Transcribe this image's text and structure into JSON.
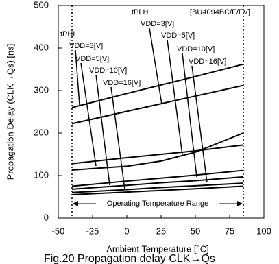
{
  "chart_data": {
    "type": "line",
    "xlabel": "Ambient Temperature [°C]",
    "ylabel": "Propagation Delay (CLK→Qs) [ns]",
    "caption": "Fig.20 Propagation delay CLK→Qs",
    "x": [
      -40,
      0,
      25,
      50,
      85
    ],
    "series": [
      {
        "color": "#000000",
        "values": [
          260,
          293,
          313,
          333,
          362
        ]
      },
      {
        "color": "#000000",
        "values": [
          222,
          251,
          269,
          287,
          312
        ]
      },
      {
        "color": "#000000",
        "values": [
          128,
          142,
          150,
          158,
          172
        ]
      },
      {
        "color": "#000000",
        "values": [
          113,
          122,
          134,
          155,
          200
        ]
      },
      {
        "color": "#000000",
        "values": [
          75,
          87,
          94,
          101,
          112
        ]
      },
      {
        "color": "#000000",
        "values": [
          68,
          77,
          83,
          88,
          97
        ]
      },
      {
        "color": "#000000",
        "values": [
          60,
          67,
          72,
          76,
          82
        ]
      },
      {
        "color": "#000000",
        "values": [
          55,
          61,
          65,
          69,
          75
        ]
      }
    ],
    "xlim": [
      -50,
      100
    ],
    "xticks": [
      -50,
      -25,
      0,
      25,
      50,
      75,
      100
    ],
    "ylim": [
      0,
      500
    ],
    "yticks": [
      0,
      100,
      200,
      300,
      400,
      500
    ],
    "operating_range": [
      -40,
      85
    ],
    "range_label": "Operating Temperature Range",
    "annotations": [
      "tPHL",
      "VDD=3[V]",
      "VDD=5[V]",
      "VDD=10[V]",
      "VDD=16[V]",
      "tPLH",
      "VDD=3[V]",
      "VDD=5[V]",
      "VDD=10[V]",
      "VDD=16[V]",
      "[BU4094BC/F/FV]"
    ]
  }
}
